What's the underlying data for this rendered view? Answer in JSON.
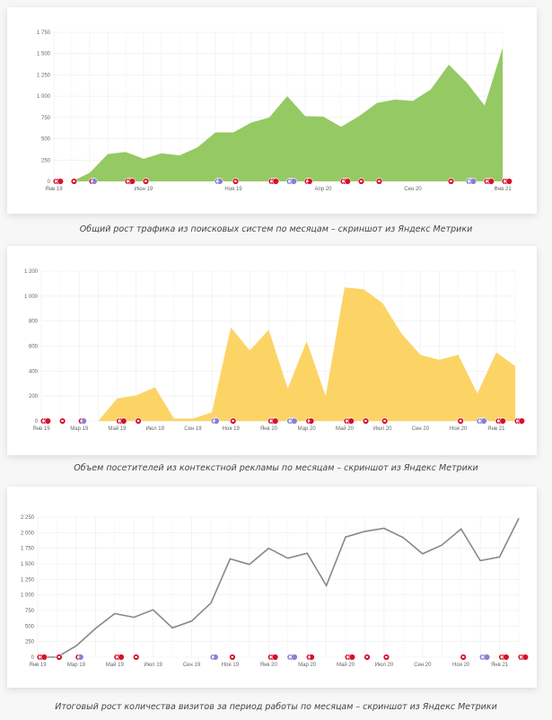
{
  "captions": [
    "Общий рост трафика из поисковых систем по месяцам – скриншот из Яндекс Метрики",
    "Объем посетителей из контекстной рекламы по месяцам – скриншот из Яндекс Метрики",
    "Итоговый рост количества визитов за период работы по месяцам – скриншот из Яндекс Метрики"
  ],
  "chart_data": [
    {
      "type": "area",
      "title": "",
      "xlabel": "",
      "ylabel": "",
      "color": "#95c964",
      "categories": [
        "Янв 19",
        "Фев 19",
        "Мар 19",
        "Апр 19",
        "Май 19",
        "Июн 19",
        "Июл 19",
        "Авг 19",
        "Сен 19",
        "Окт 19",
        "Ноя 19",
        "Дек 19",
        "Янв 20",
        "Фев 20",
        "Мар 20",
        "Апр 20",
        "Май 20",
        "Июн 20",
        "Июл 20",
        "Авг 20",
        "Сен 20",
        "Окт 20",
        "Ноя 20",
        "Дек 20",
        "Янв 21",
        "Фев 21"
      ],
      "values": [
        0,
        0,
        100,
        320,
        345,
        265,
        330,
        305,
        400,
        575,
        575,
        690,
        750,
        1000,
        765,
        760,
        640,
        765,
        920,
        960,
        945,
        1080,
        1370,
        1160,
        890,
        1570
      ],
      "x_tick_labels": [
        {
          "i": 0,
          "label": "Янв 19"
        },
        {
          "i": 5,
          "label": "Июн 19"
        },
        {
          "i": 10,
          "label": "Ноя 19"
        },
        {
          "i": 15,
          "label": "Апр 20"
        },
        {
          "i": 20,
          "label": "Сен 20"
        },
        {
          "i": 25,
          "label": "Фев 21"
        }
      ],
      "y_ticks": [
        0,
        250,
        500,
        750,
        1000,
        1250,
        1500,
        1750
      ],
      "y_tick_labels": [
        "0",
        "250",
        "500",
        "750",
        "1 000",
        "1 250",
        "1 500",
        "1 750"
      ],
      "ylim": [
        0,
        1750
      ],
      "grid": true,
      "annotations": [
        {
          "i": 0,
          "kind": "red",
          "count": 3
        },
        {
          "i": 1,
          "kind": "red",
          "count": 1
        },
        {
          "i": 2,
          "kind": "red-purple",
          "count": 2
        },
        {
          "i": 4,
          "kind": "red",
          "count": 3
        },
        {
          "i": 5,
          "kind": "red",
          "count": 1
        },
        {
          "i": 9,
          "kind": "purple",
          "count": 2
        },
        {
          "i": 10,
          "kind": "red",
          "count": 1
        },
        {
          "i": 12,
          "kind": "red",
          "count": 3
        },
        {
          "i": 13,
          "kind": "purple",
          "count": 3
        },
        {
          "i": 14,
          "kind": "red",
          "count": 2
        },
        {
          "i": 16,
          "kind": "red",
          "count": 3
        },
        {
          "i": 17,
          "kind": "red",
          "count": 1
        },
        {
          "i": 18,
          "kind": "red",
          "count": 1
        },
        {
          "i": 22,
          "kind": "red",
          "count": 1
        },
        {
          "i": 23,
          "kind": "purple",
          "count": 3
        },
        {
          "i": 24,
          "kind": "red",
          "count": 3
        },
        {
          "i": 25,
          "kind": "red",
          "count": 3
        }
      ]
    },
    {
      "type": "area",
      "title": "",
      "xlabel": "",
      "ylabel": "",
      "color": "#fcd466",
      "categories": [
        "Янв 19",
        "Фев 19",
        "Мар 19",
        "Апр 19",
        "Май 19",
        "Июн 19",
        "Июл 19",
        "Авг 19",
        "Сен 19",
        "Окт 19",
        "Ноя 19",
        "Дек 19",
        "Янв 20",
        "Фев 20",
        "Мар 20",
        "Апр 20",
        "Май 20",
        "Июн 20",
        "Июл 20",
        "Авг 20",
        "Сен 20",
        "Окт 20",
        "Ноя 20",
        "Дек 20",
        "Янв 21",
        "Фев 21"
      ],
      "values": [
        0,
        0,
        0,
        0,
        180,
        205,
        270,
        20,
        20,
        70,
        750,
        565,
        730,
        260,
        640,
        200,
        1070,
        1055,
        945,
        700,
        530,
        490,
        530,
        220,
        550,
        440
      ],
      "x_tick_labels": [
        {
          "i": 0,
          "label": "Янв 19"
        },
        {
          "i": 2,
          "label": "Мар 19"
        },
        {
          "i": 4,
          "label": "Май 19"
        },
        {
          "i": 6,
          "label": "Июл 19"
        },
        {
          "i": 8,
          "label": "Сен 19"
        },
        {
          "i": 10,
          "label": "Ноя 19"
        },
        {
          "i": 12,
          "label": "Янв 20"
        },
        {
          "i": 14,
          "label": "Мар 20"
        },
        {
          "i": 16,
          "label": "Май 20"
        },
        {
          "i": 18,
          "label": "Июл 20"
        },
        {
          "i": 20,
          "label": "Сен 20"
        },
        {
          "i": 22,
          "label": "Ноя 20"
        },
        {
          "i": 24,
          "label": "Янв 21"
        }
      ],
      "y_ticks": [
        0,
        200,
        400,
        600,
        800,
        1000,
        1200
      ],
      "y_tick_labels": [
        "0",
        "200",
        "400",
        "600",
        "800",
        "1 000",
        "1 200"
      ],
      "ylim": [
        0,
        1200
      ],
      "grid": true,
      "annotations": [
        {
          "i": 0,
          "kind": "red",
          "count": 3
        },
        {
          "i": 1,
          "kind": "red",
          "count": 1
        },
        {
          "i": 2,
          "kind": "red-purple",
          "count": 2
        },
        {
          "i": 4,
          "kind": "red",
          "count": 3
        },
        {
          "i": 5,
          "kind": "red",
          "count": 1
        },
        {
          "i": 9,
          "kind": "purple",
          "count": 2
        },
        {
          "i": 10,
          "kind": "red",
          "count": 1
        },
        {
          "i": 12,
          "kind": "red",
          "count": 3
        },
        {
          "i": 13,
          "kind": "purple",
          "count": 3
        },
        {
          "i": 14,
          "kind": "red",
          "count": 2
        },
        {
          "i": 16,
          "kind": "red",
          "count": 3
        },
        {
          "i": 17,
          "kind": "red",
          "count": 1
        },
        {
          "i": 18,
          "kind": "red",
          "count": 1
        },
        {
          "i": 22,
          "kind": "red",
          "count": 1
        },
        {
          "i": 23,
          "kind": "purple",
          "count": 3
        },
        {
          "i": 24,
          "kind": "red",
          "count": 3
        },
        {
          "i": 25,
          "kind": "red",
          "count": 3
        }
      ]
    },
    {
      "type": "line",
      "title": "",
      "xlabel": "",
      "ylabel": "",
      "color": "#888888",
      "categories": [
        "Янв 19",
        "Фев 19",
        "Мар 19",
        "Апр 19",
        "Май 19",
        "Июн 19",
        "Июл 19",
        "Авг 19",
        "Сен 19",
        "Окт 19",
        "Ноя 19",
        "Дек 19",
        "Янв 20",
        "Фев 20",
        "Мар 20",
        "Апр 20",
        "Май 20",
        "Июн 20",
        "Июл 20",
        "Авг 20",
        "Сен 20",
        "Окт 20",
        "Ноя 20",
        "Дек 20",
        "Янв 21",
        "Фев 21"
      ],
      "values": [
        0,
        0,
        180,
        460,
        700,
        640,
        760,
        470,
        580,
        870,
        1580,
        1490,
        1750,
        1590,
        1670,
        1150,
        1930,
        2020,
        2070,
        1920,
        1660,
        1800,
        2060,
        1550,
        1610,
        2230
      ],
      "x_tick_labels": [
        {
          "i": 0,
          "label": "Янв 19"
        },
        {
          "i": 2,
          "label": "Мар 19"
        },
        {
          "i": 4,
          "label": "Май 19"
        },
        {
          "i": 6,
          "label": "Июл 19"
        },
        {
          "i": 8,
          "label": "Сен 19"
        },
        {
          "i": 10,
          "label": "Ноя 19"
        },
        {
          "i": 12,
          "label": "Янв 20"
        },
        {
          "i": 14,
          "label": "Мар 20"
        },
        {
          "i": 16,
          "label": "Май 20"
        },
        {
          "i": 18,
          "label": "Июл 20"
        },
        {
          "i": 20,
          "label": "Сен 20"
        },
        {
          "i": 22,
          "label": "Ноя 20"
        },
        {
          "i": 24,
          "label": "Янв 21"
        }
      ],
      "y_ticks": [
        0,
        250,
        500,
        750,
        1000,
        1250,
        1500,
        1750,
        2000,
        2250
      ],
      "y_tick_labels": [
        "0",
        "250",
        "500",
        "750",
        "1 000",
        "1 250",
        "1 500",
        "1 750",
        "2 000",
        "2 250"
      ],
      "ylim": [
        0,
        2250
      ],
      "grid": true,
      "annotations": [
        {
          "i": 0,
          "kind": "red",
          "count": 3
        },
        {
          "i": 1,
          "kind": "red",
          "count": 1
        },
        {
          "i": 2,
          "kind": "red-purple",
          "count": 2
        },
        {
          "i": 4,
          "kind": "red",
          "count": 3
        },
        {
          "i": 5,
          "kind": "red",
          "count": 1
        },
        {
          "i": 9,
          "kind": "purple",
          "count": 2
        },
        {
          "i": 10,
          "kind": "red",
          "count": 1
        },
        {
          "i": 12,
          "kind": "red",
          "count": 3
        },
        {
          "i": 13,
          "kind": "purple",
          "count": 3
        },
        {
          "i": 14,
          "kind": "red",
          "count": 2
        },
        {
          "i": 16,
          "kind": "red",
          "count": 3
        },
        {
          "i": 17,
          "kind": "red",
          "count": 1
        },
        {
          "i": 18,
          "kind": "red",
          "count": 1
        },
        {
          "i": 22,
          "kind": "red",
          "count": 1
        },
        {
          "i": 23,
          "kind": "purple",
          "count": 3
        },
        {
          "i": 24,
          "kind": "red",
          "count": 3
        },
        {
          "i": 25,
          "kind": "red",
          "count": 3
        }
      ]
    }
  ],
  "annotation_colors": {
    "red": "#d8102a",
    "purple": "#8a7fd6"
  }
}
